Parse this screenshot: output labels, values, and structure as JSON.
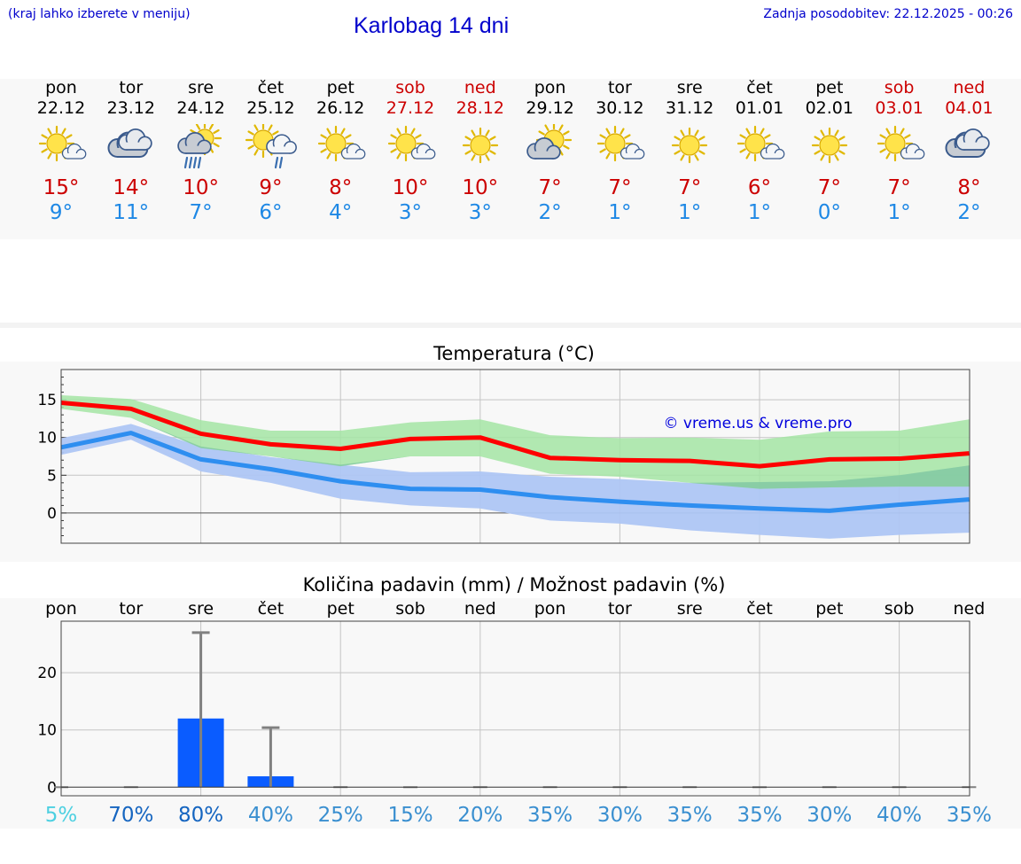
{
  "header": {
    "note": "(kraj lahko izberete v meniju)",
    "title": "Karlobag 14 dni",
    "updated": "Zadnja posodobitev: 22.12.2025 - 00:26"
  },
  "days": [
    {
      "name": "pon",
      "date": "22.12",
      "icon": "sun-small-cloud-icon",
      "max": "15°",
      "min": "9°",
      "weekend": false
    },
    {
      "name": "tor",
      "date": "23.12",
      "icon": "overcast-cloud-icon",
      "max": "14°",
      "min": "11°",
      "weekend": false
    },
    {
      "name": "sre",
      "date": "24.12",
      "icon": "sun-cloud-rain-icon",
      "max": "10°",
      "min": "7°",
      "weekend": false
    },
    {
      "name": "čet",
      "date": "25.12",
      "icon": "sun-cloud-light-rain-icon",
      "max": "9°",
      "min": "6°",
      "weekend": false
    },
    {
      "name": "pet",
      "date": "26.12",
      "icon": "sun-small-cloud-icon",
      "max": "8°",
      "min": "4°",
      "weekend": false
    },
    {
      "name": "sob",
      "date": "27.12",
      "icon": "sun-small-cloud-icon",
      "max": "10°",
      "min": "3°",
      "weekend": true
    },
    {
      "name": "ned",
      "date": "28.12",
      "icon": "sun-icon",
      "max": "10°",
      "min": "3°",
      "weekend": true
    },
    {
      "name": "pon",
      "date": "29.12",
      "icon": "cloud-sun-icon",
      "max": "7°",
      "min": "2°",
      "weekend": false
    },
    {
      "name": "tor",
      "date": "30.12",
      "icon": "sun-small-cloud-icon",
      "max": "7°",
      "min": "1°",
      "weekend": false
    },
    {
      "name": "sre",
      "date": "31.12",
      "icon": "sun-icon",
      "max": "7°",
      "min": "1°",
      "weekend": false
    },
    {
      "name": "čet",
      "date": "01.01",
      "icon": "sun-small-cloud-icon",
      "max": "6°",
      "min": "1°",
      "weekend": false
    },
    {
      "name": "pet",
      "date": "02.01",
      "icon": "sun-icon",
      "max": "7°",
      "min": "0°",
      "weekend": false
    },
    {
      "name": "sob",
      "date": "03.01",
      "icon": "sun-small-cloud-icon",
      "max": "7°",
      "min": "1°",
      "weekend": true
    },
    {
      "name": "ned",
      "date": "04.01",
      "icon": "overcast-cloud-icon",
      "max": "8°",
      "min": "2°",
      "weekend": true
    }
  ],
  "colors": {
    "max_line": "#ff0000",
    "min_line": "#2e8ef0",
    "max_band": "#a5e5a5",
    "min_band": "#aec6f4",
    "overlap_band": "#7cc4a0",
    "precip_bar": "#0a5cff",
    "error_bar": "#808080"
  },
  "chart_data": [
    {
      "type": "line",
      "title": "Temperatura (°C)",
      "watermark": "© vreme.us & vreme.pro",
      "x": [
        0,
        1,
        2,
        3,
        4,
        5,
        6,
        7,
        8,
        9,
        10,
        11,
        12,
        13
      ],
      "ylim": [
        -4,
        19
      ],
      "yticks": [
        0,
        5,
        10,
        15
      ],
      "series": [
        {
          "name": "max",
          "values": [
            14.6,
            13.8,
            10.5,
            9.1,
            8.5,
            9.8,
            10.0,
            7.3,
            7.0,
            6.9,
            6.2,
            7.1,
            7.2,
            7.9
          ]
        },
        {
          "name": "min",
          "values": [
            8.7,
            10.6,
            7.1,
            5.8,
            4.2,
            3.2,
            3.1,
            2.1,
            1.5,
            1.0,
            0.6,
            0.3,
            1.1,
            1.8
          ]
        }
      ],
      "bands": [
        {
          "name": "max_range",
          "low": [
            13.8,
            12.6,
            8.6,
            7.5,
            6.2,
            7.5,
            7.5,
            5.2,
            4.8,
            4.0,
            3.2,
            3.4,
            3.5,
            3.5
          ],
          "high": [
            15.6,
            15.1,
            12.3,
            10.9,
            10.9,
            12.0,
            12.4,
            10.3,
            9.9,
            10.0,
            9.7,
            10.8,
            10.9,
            12.4
          ]
        },
        {
          "name": "min_range",
          "low": [
            7.7,
            9.7,
            5.5,
            4.0,
            1.9,
            1.0,
            0.6,
            -1.0,
            -1.4,
            -2.3,
            -2.9,
            -3.4,
            -2.9,
            -2.6
          ],
          "high": [
            9.9,
            11.8,
            8.8,
            7.4,
            6.4,
            5.4,
            5.5,
            4.8,
            4.5,
            4.0,
            4.1,
            4.2,
            5.0,
            6.3
          ]
        }
      ]
    },
    {
      "type": "bar",
      "title": "Količina padavin (mm) / Možnost padavin (%)",
      "categories": [
        "pon",
        "tor",
        "sre",
        "čet",
        "pet",
        "sob",
        "ned",
        "pon",
        "tor",
        "sre",
        "čet",
        "pet",
        "sob",
        "ned"
      ],
      "values": [
        0,
        0,
        12.0,
        1.9,
        0,
        0,
        0,
        0,
        0,
        0,
        0,
        0,
        0,
        0
      ],
      "error_high": [
        0,
        0,
        27.0,
        10.4,
        0,
        0,
        0,
        0,
        0,
        0,
        0,
        0,
        0,
        0
      ],
      "ylim": [
        -1.5,
        29
      ],
      "yticks": [
        0,
        10,
        20
      ],
      "probabilities": [
        "5%",
        "70%",
        "80%",
        "40%",
        "25%",
        "15%",
        "20%",
        "35%",
        "30%",
        "35%",
        "35%",
        "30%",
        "40%",
        "35%"
      ],
      "probability_colors": [
        "#4dd0e1",
        "#1565c0",
        "#1565c0",
        "#3a8fd0",
        "#3a8fd0",
        "#3a8fd0",
        "#3a8fd0",
        "#3a8fd0",
        "#3a8fd0",
        "#3a8fd0",
        "#3a8fd0",
        "#3a8fd0",
        "#3a8fd0",
        "#3a8fd0"
      ]
    }
  ]
}
